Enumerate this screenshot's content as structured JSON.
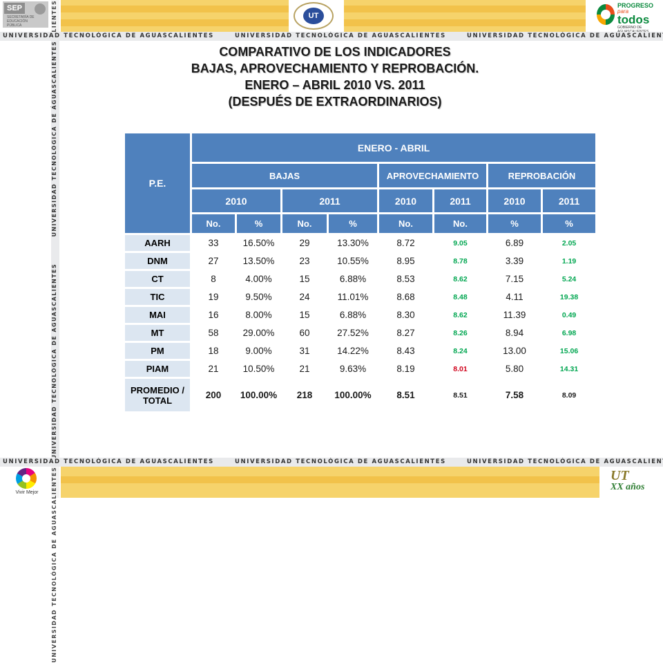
{
  "header": {
    "sep_logo_text": "SEP",
    "sep_subtext": "SECRETARÍA DE EDUCACIÓN PÚBLICA",
    "ut_seal_text": "UT",
    "progreso_line1": "PROGRESO",
    "progreso_line2": "para",
    "progreso_line3": "todos",
    "progreso_line4": "GOBIERNO DE AGUASCALIENTES"
  },
  "ribbon": {
    "text": "UNIVERSIDAD TECNOLÓGICA DE AGUASCALIENTES"
  },
  "vertical_ribbon_text": "UNIVERSIDAD TECNOLÓGICA DE AGUASCALIENTES",
  "footer": {
    "vivir_text": "Vivir Mejor",
    "xx_ut": "UT",
    "xx_text": "XX años"
  },
  "title": {
    "line1": "COMPARATIVO DE LOS INDICADORES",
    "line2": "BAJAS, APROVECHAMIENTO Y REPROBACIÓN.",
    "line3": "ENERO – ABRIL 2010 VS. 2011",
    "line4": "(DESPUÉS DE EXTRAORDINARIOS)"
  },
  "table": {
    "pe_header": "P.E.",
    "period_header": "ENERO - ABRIL",
    "groups": [
      "BAJAS",
      "APROVECHAMIENTO",
      "REPROBACIÓN"
    ],
    "years": [
      "2010",
      "2011",
      "2010",
      "2011",
      "2010",
      "2011"
    ],
    "units": [
      "No.",
      "%",
      "No.",
      "%",
      "No.",
      "No.",
      "%",
      "%"
    ],
    "rows": [
      {
        "pe": "AARH",
        "b2010_no": "33",
        "b2010_pct": "16.50%",
        "b2011_no": "29",
        "b2011_pct": "13.30%",
        "a2010": "8.72",
        "a2011": "9.05",
        "r2010": "6.89",
        "r2011": "2.05"
      },
      {
        "pe": "DNM",
        "b2010_no": "27",
        "b2010_pct": "13.50%",
        "b2011_no": "23",
        "b2011_pct": "10.55%",
        "a2010": "8.95",
        "a2011": "8.78",
        "r2010": "3.39",
        "r2011": "1.19"
      },
      {
        "pe": "CT",
        "b2010_no": "8",
        "b2010_pct": "4.00%",
        "b2011_no": "15",
        "b2011_pct": "6.88%",
        "a2010": "8.53",
        "a2011": "8.62",
        "r2010": "7.15",
        "r2011": "5.24"
      },
      {
        "pe": "TIC",
        "b2010_no": "19",
        "b2010_pct": "9.50%",
        "b2011_no": "24",
        "b2011_pct": "11.01%",
        "a2010": "8.68",
        "a2011": "8.48",
        "r2010": "4.11",
        "r2011": "19.38"
      },
      {
        "pe": "MAI",
        "b2010_no": "16",
        "b2010_pct": "8.00%",
        "b2011_no": "15",
        "b2011_pct": "6.88%",
        "a2010": "8.30",
        "a2011": "8.62",
        "r2010": "11.39",
        "r2011": "0.49"
      },
      {
        "pe": "MT",
        "b2010_no": "58",
        "b2010_pct": "29.00%",
        "b2011_no": "60",
        "b2011_pct": "27.52%",
        "a2010": "8.27",
        "a2011": "8.26",
        "r2010": "8.94",
        "r2011": "6.98"
      },
      {
        "pe": "PM",
        "b2010_no": "18",
        "b2010_pct": "9.00%",
        "b2011_no": "31",
        "b2011_pct": "14.22%",
        "a2010": "8.43",
        "a2011": "8.24",
        "r2010": "13.00",
        "r2011": "15.06"
      },
      {
        "pe": "PIAM",
        "b2010_no": "21",
        "b2010_pct": "10.50%",
        "b2011_no": "21",
        "b2011_pct": "9.63%",
        "a2010": "8.19",
        "a2011": "8.01",
        "r2010": "5.80",
        "r2011": "14.31"
      }
    ],
    "total": {
      "pe_line1": "PROMEDIO /",
      "pe_line2": "TOTAL",
      "b2010_no": "200",
      "b2010_pct": "100.00%",
      "b2011_no": "218",
      "b2011_pct": "100.00%",
      "a2010": "8.51",
      "a2011": "8.51",
      "r2010": "7.58",
      "r2011": "8.09"
    },
    "colors": {
      "header_bg": "#4f81bd",
      "label_bg": "#dce6f1",
      "green": "#00a650",
      "red": "#d0021b"
    }
  }
}
